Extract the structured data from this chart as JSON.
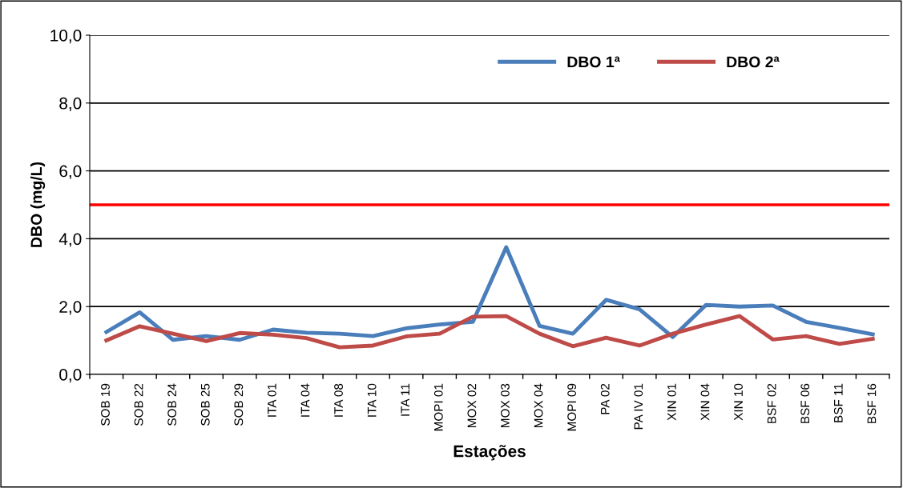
{
  "chart_data": {
    "type": "line",
    "xlabel": "Estações",
    "ylabel": "DBO (mg/L)",
    "categories": [
      "SOB 19",
      "SOB 22",
      "SOB 24",
      "SOB 25",
      "SOB 29",
      "ITA 01",
      "ITA 04",
      "ITA 08",
      "ITA 10",
      "ITA 11",
      "MOPI 01",
      "MOX 02",
      "MOX 03",
      "MOX 04",
      "MOPI 09",
      "PA 02",
      "PA IV 01",
      "XIN 01",
      "XIN 04",
      "XIN 10",
      "BSF 02",
      "BSF 06",
      "BSF 11",
      "BSF 16"
    ],
    "series": [
      {
        "name": "DBO 1ª",
        "color": "#4a7ebb",
        "values": [
          1.25,
          1.83,
          1.02,
          1.13,
          1.02,
          1.32,
          1.23,
          1.2,
          1.13,
          1.36,
          1.47,
          1.55,
          3.75,
          1.43,
          1.2,
          2.2,
          1.92,
          1.1,
          2.05,
          2.0,
          2.03,
          1.55,
          1.37,
          1.18
        ]
      },
      {
        "name": "DBO 2ª",
        "color": "#be4b48",
        "values": [
          1.0,
          1.42,
          1.2,
          0.98,
          1.22,
          1.17,
          1.07,
          0.8,
          0.85,
          1.12,
          1.2,
          1.7,
          1.72,
          1.2,
          0.83,
          1.08,
          0.85,
          1.2,
          1.47,
          1.72,
          1.03,
          1.13,
          0.9,
          1.05
        ]
      }
    ],
    "ylim": [
      0,
      10
    ],
    "yticks": [
      {
        "value": 0,
        "label": "0,0"
      },
      {
        "value": 2,
        "label": "2,0"
      },
      {
        "value": 4,
        "label": "4,0"
      },
      {
        "value": 6,
        "label": "6,0"
      },
      {
        "value": 8,
        "label": "8,0"
      },
      {
        "value": 10,
        "label": "10,0"
      }
    ],
    "ref_lines": [
      {
        "axis": "y",
        "value": 5,
        "color": "#ff0000",
        "line_style": "solid"
      }
    ],
    "grid": "y",
    "legend": "top right",
    "marker": "none",
    "line_style": "solid"
  }
}
